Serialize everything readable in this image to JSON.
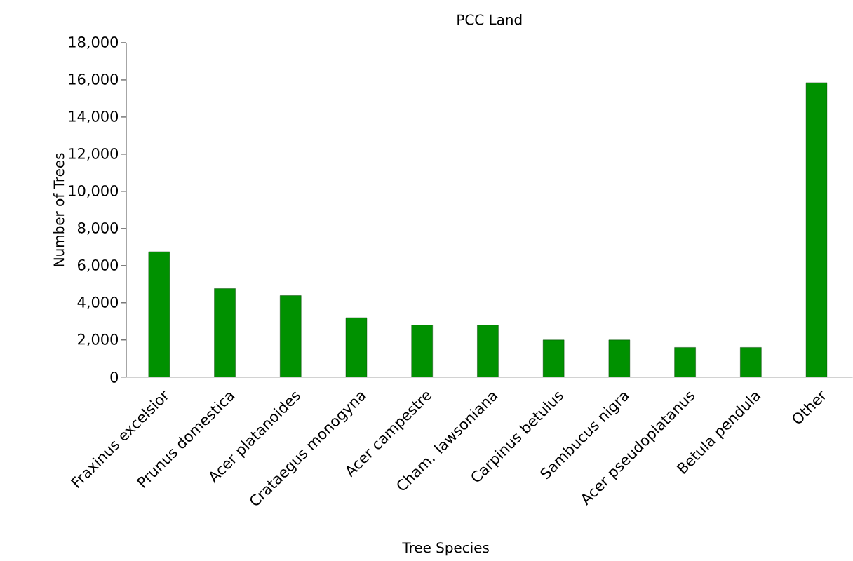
{
  "chart_data": {
    "type": "bar",
    "title": "PCC Land",
    "xlabel": "Tree Species",
    "ylabel": "Number of Trees",
    "categories": [
      "Fraxinus excelsior",
      "Prunus domestica",
      "Acer platanoides",
      "Crataegus monogyna",
      "Acer campestre",
      "Cham. lawsoniana",
      "Carpinus betulus",
      "Sambucus nigra",
      "Acer pseudoplatanus",
      "Betula pendula",
      "Other"
    ],
    "values": [
      6750,
      4770,
      4390,
      3200,
      2800,
      2800,
      2000,
      2000,
      1600,
      1600,
      15850
    ],
    "color": "#009100",
    "ylim": [
      0,
      18000
    ],
    "yticks": [
      {
        "value": 0,
        "label": "0"
      },
      {
        "value": 2000,
        "label": "2,000"
      },
      {
        "value": 4000,
        "label": "4,000"
      },
      {
        "value": 6000,
        "label": "6,000"
      },
      {
        "value": 8000,
        "label": "8,000"
      },
      {
        "value": 10000,
        "label": "10,000"
      },
      {
        "value": 12000,
        "label": "12,000"
      },
      {
        "value": 14000,
        "label": "14,000"
      },
      {
        "value": 16000,
        "label": "16,000"
      },
      {
        "value": 18000,
        "label": "18,000"
      }
    ],
    "grid": false
  }
}
